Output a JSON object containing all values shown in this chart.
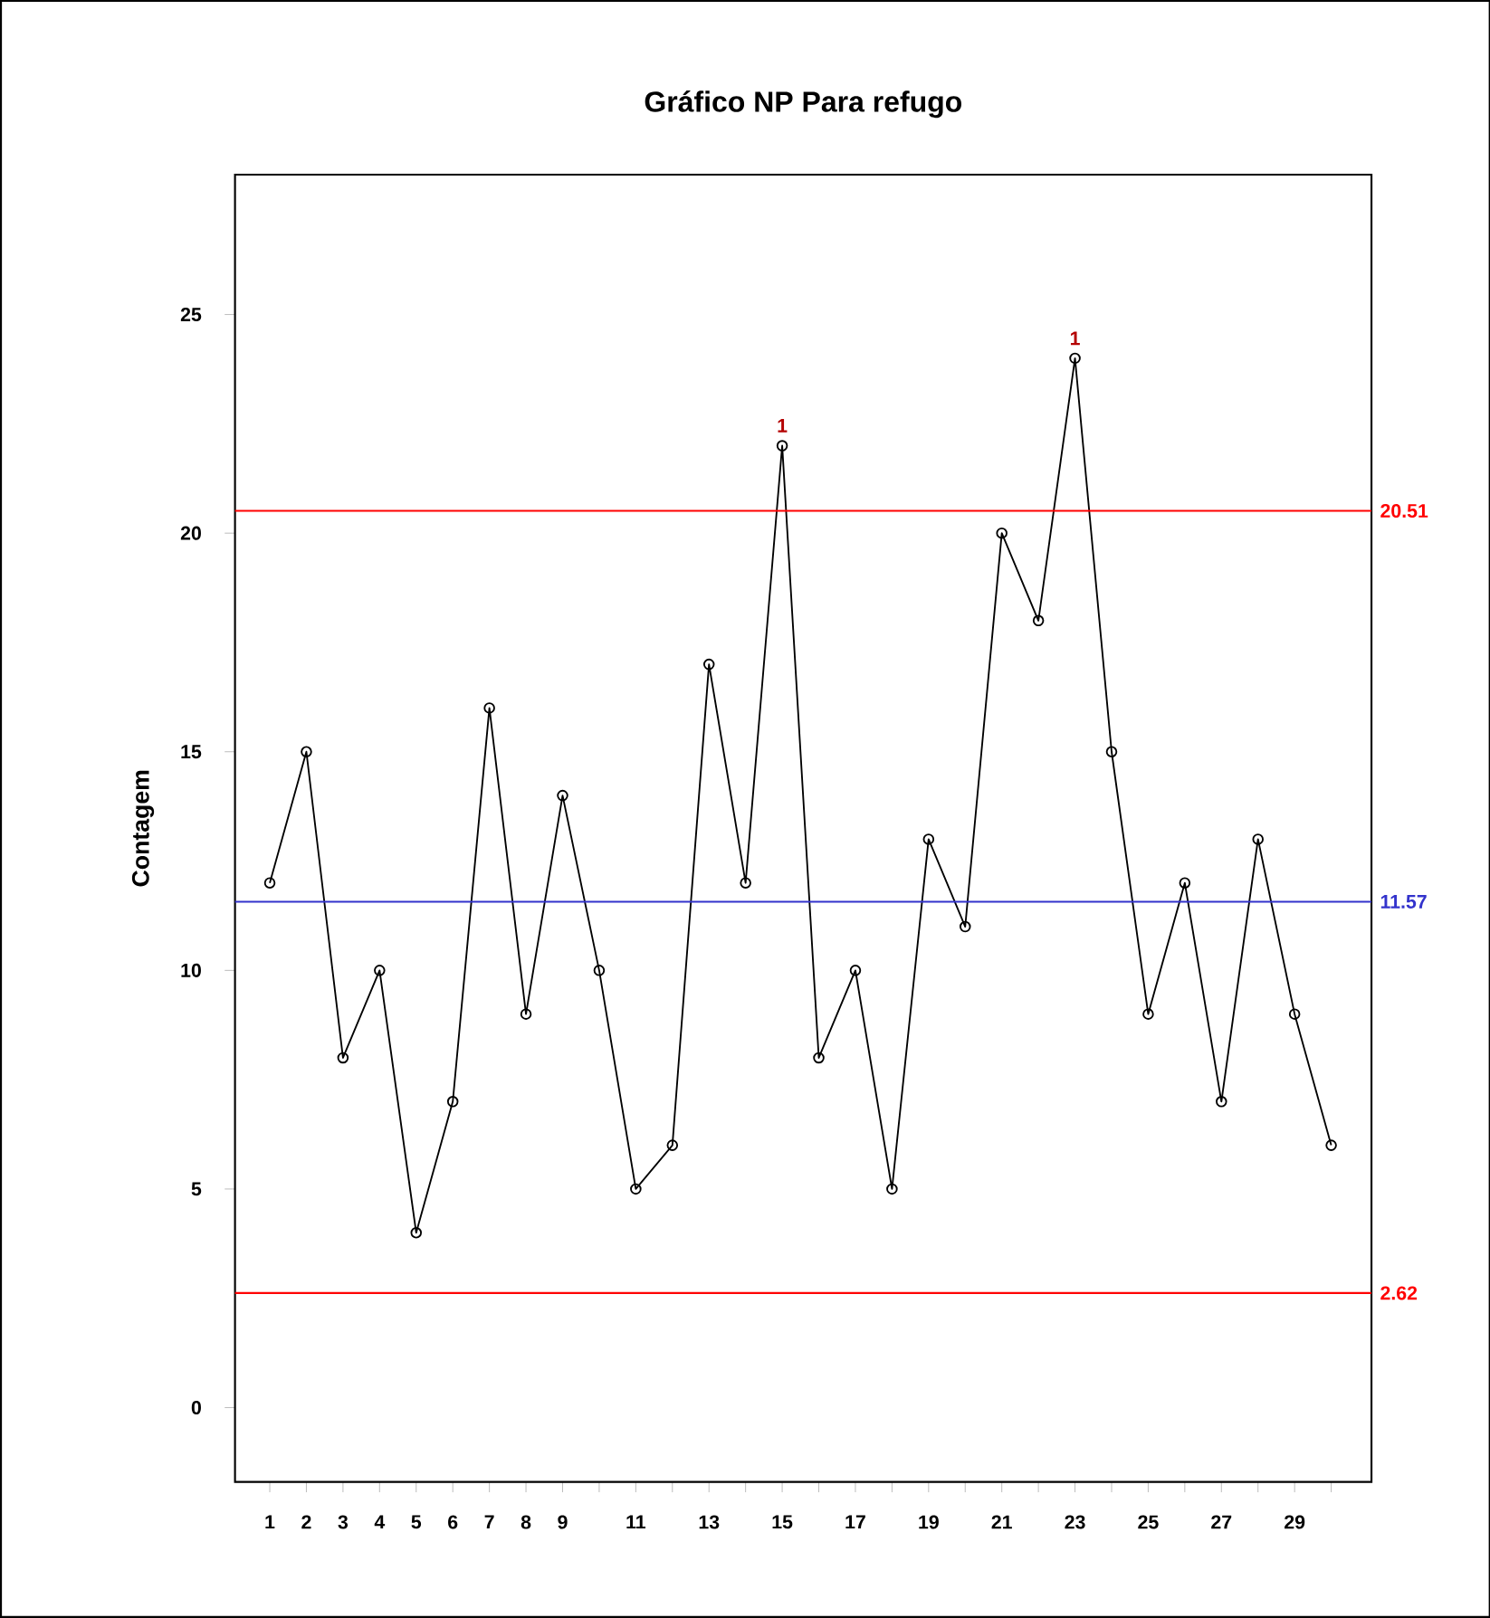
{
  "chart_data": {
    "type": "line",
    "title": "Gráfico NP Para refugo",
    "ylabel": "Contagem",
    "x": [
      1,
      2,
      3,
      4,
      5,
      6,
      7,
      8,
      9,
      10,
      11,
      12,
      13,
      14,
      15,
      16,
      17,
      18,
      19,
      20,
      21,
      22,
      23,
      24,
      25,
      26,
      27,
      28,
      29,
      30
    ],
    "series": [
      {
        "color": "#000000",
        "values": [
          12,
          15,
          8,
          10,
          4,
          7,
          16,
          9,
          14,
          10,
          5,
          6,
          17,
          12,
          22,
          8,
          10,
          5,
          13,
          11,
          20,
          18,
          24,
          15,
          9,
          12,
          7,
          13,
          9,
          6
        ]
      }
    ],
    "marker": "circle",
    "line_style": "solid",
    "grid": false,
    "xlim": [
      0.05,
      31.1
    ],
    "ylim": [
      -1.7,
      28.2
    ],
    "xticks": [
      1,
      2,
      3,
      4,
      5,
      6,
      7,
      8,
      9,
      {
        "value": 10,
        "label": null
      },
      11,
      {
        "value": 12,
        "label": null
      },
      13,
      {
        "value": 14,
        "label": null
      },
      15,
      {
        "value": 16,
        "label": null
      },
      17,
      {
        "value": 18,
        "label": null
      },
      19,
      {
        "value": 20,
        "label": null
      },
      21,
      {
        "value": 22,
        "label": null
      },
      23,
      {
        "value": 24,
        "label": null
      },
      25,
      {
        "value": 26,
        "label": null
      },
      27,
      {
        "value": 28,
        "label": null
      },
      29,
      {
        "value": 30,
        "label": null
      }
    ],
    "yticks": [
      0,
      5,
      10,
      15,
      20,
      25
    ],
    "ref_lines": [
      {
        "axis": "y",
        "value": 20.51,
        "label": "20.51",
        "color": "#ff0000"
      },
      {
        "axis": "y",
        "value": 11.57,
        "label": "11.57",
        "color": "#3333cc"
      },
      {
        "axis": "y",
        "value": 2.62,
        "label": "2.62",
        "color": "#ff0000"
      }
    ],
    "annotations": [
      {
        "text": "1",
        "x": 15,
        "y": 22
      },
      {
        "text": "1",
        "x": 23,
        "y": 24
      }
    ]
  }
}
